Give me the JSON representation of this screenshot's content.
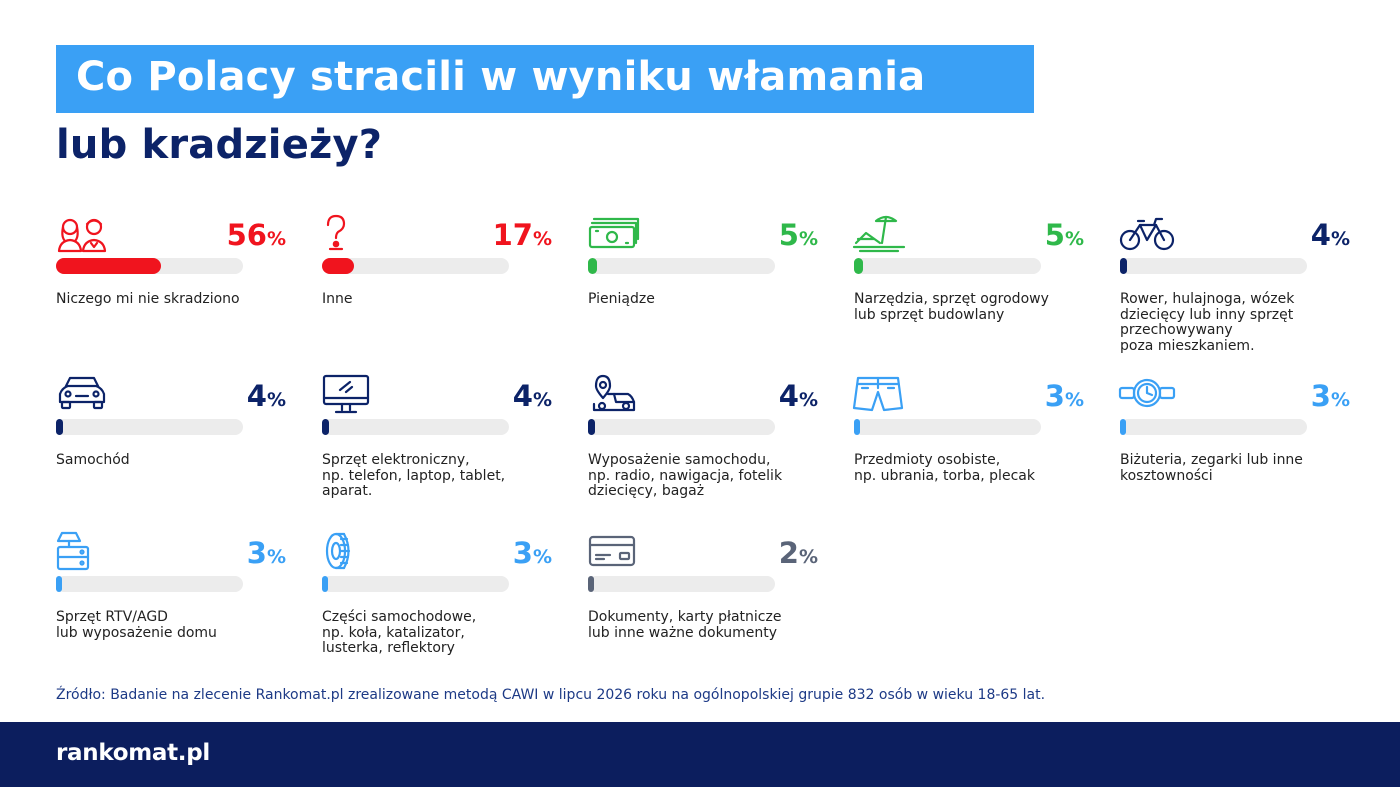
{
  "title": {
    "line1": "Co Polacy stracili w wyniku włamania",
    "line2": "lub kradzieży?"
  },
  "colors": {
    "title_band": "#3aa0f5",
    "title_dark": "#0c2368",
    "red": "#f0141e",
    "green": "#2fb84a",
    "navy": "#0c2368",
    "light_blue": "#3aa0f5",
    "gray": "#5a6478",
    "track": "#ececec",
    "footer": "#0c1e5e"
  },
  "chart_data": {
    "type": "bar",
    "xlim": [
      0,
      100
    ],
    "categories": [
      "Niczego mi nie skradziono",
      "Inne",
      "Pieniądze",
      "Narzędzia, sprzęt ogrodowy\nlub sprzęt budowlany",
      "Rower, hulajnoga, wózek\ndziecięcy lub inny sprzęt\nprzechowywany\npoza mieszkaniem.",
      "Samochód",
      "Sprzęt elektroniczny,\nnp. telefon, laptop, tablet,\naparat.",
      "Wyposażenie samochodu,\nnp. radio, nawigacja, fotelik\ndziecięcy, bagaż",
      "Przedmioty osobiste,\nnp. ubrania, torba, plecak",
      "Biżuteria, zegarki lub inne\nkosztowności",
      "Sprzęt RTV/AGD\nlub wyposażenie domu",
      "Części samochodowe,\nnp. koła, katalizator,\nlusterka, reflektory",
      "Dokumenty, karty płatnicze\nlub inne ważne dokumenty"
    ],
    "values": [
      56,
      17,
      5,
      5,
      4,
      4,
      4,
      4,
      3,
      3,
      3,
      3,
      2
    ],
    "value_suffix": "%",
    "value_colors": [
      "red",
      "red",
      "green",
      "green",
      "navy",
      "navy",
      "navy",
      "navy",
      "light_blue",
      "light_blue",
      "light_blue",
      "light_blue",
      "gray"
    ],
    "icons": [
      "people-icon",
      "question-mark-icon",
      "banknotes-icon",
      "beach-tools-icon",
      "bicycle-icon",
      "car-icon",
      "monitor-icon",
      "car-location-icon",
      "shorts-icon",
      "wristwatch-icon",
      "tv-appliance-icon",
      "tire-icon",
      "payment-card-icon"
    ]
  },
  "source": "Źródło: Badanie na zlecenie Rankomat.pl zrealizowane metodą CAWI w lipcu 2026 roku na ogólnopolskiej grupie 832 osób w wieku 18-65 lat.",
  "logo": "rankomat.pl"
}
